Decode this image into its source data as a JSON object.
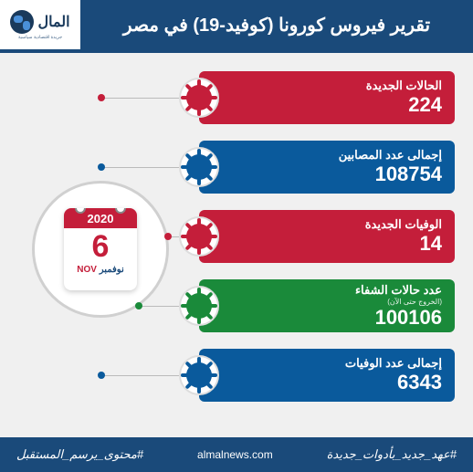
{
  "colors": {
    "primary": "#1a4a7a",
    "red": "#c41e3a",
    "blue": "#0a5a9c",
    "green": "#1a8a3a",
    "day_color": "#c41e3a",
    "month_color": "#1a4a7a"
  },
  "header": {
    "logo_text": "المال",
    "logo_subtitle": "جريدة اقتصادية سياسية",
    "title": "تقرير فيروس كورونا (كوفيد-19) في مصر"
  },
  "date": {
    "year": "2020",
    "day": "6",
    "month_ar": "نوفمبر",
    "month_en": "NOV"
  },
  "stats": [
    {
      "label": "الحالات الجديدة",
      "value": "224",
      "color": "#c41e3a"
    },
    {
      "label": "إجمالى عدد المصابين",
      "value": "108754",
      "color": "#0a5a9c"
    },
    {
      "label": "الوفيات الجديدة",
      "value": "14",
      "color": "#c41e3a"
    },
    {
      "label": "عدد حالات الشفاء",
      "sublabel": "(الخروج حتى الآن)",
      "value": "100106",
      "color": "#1a8a3a"
    },
    {
      "label": "إجمالى عدد الوفيات",
      "value": "6343",
      "color": "#0a5a9c"
    }
  ],
  "footer": {
    "right_hashtag": "#محتوى_يرسم_المستقبل",
    "center": "almalnews.com",
    "left_hashtag": "#عهد_جديد_بأدوات_جديدة"
  }
}
